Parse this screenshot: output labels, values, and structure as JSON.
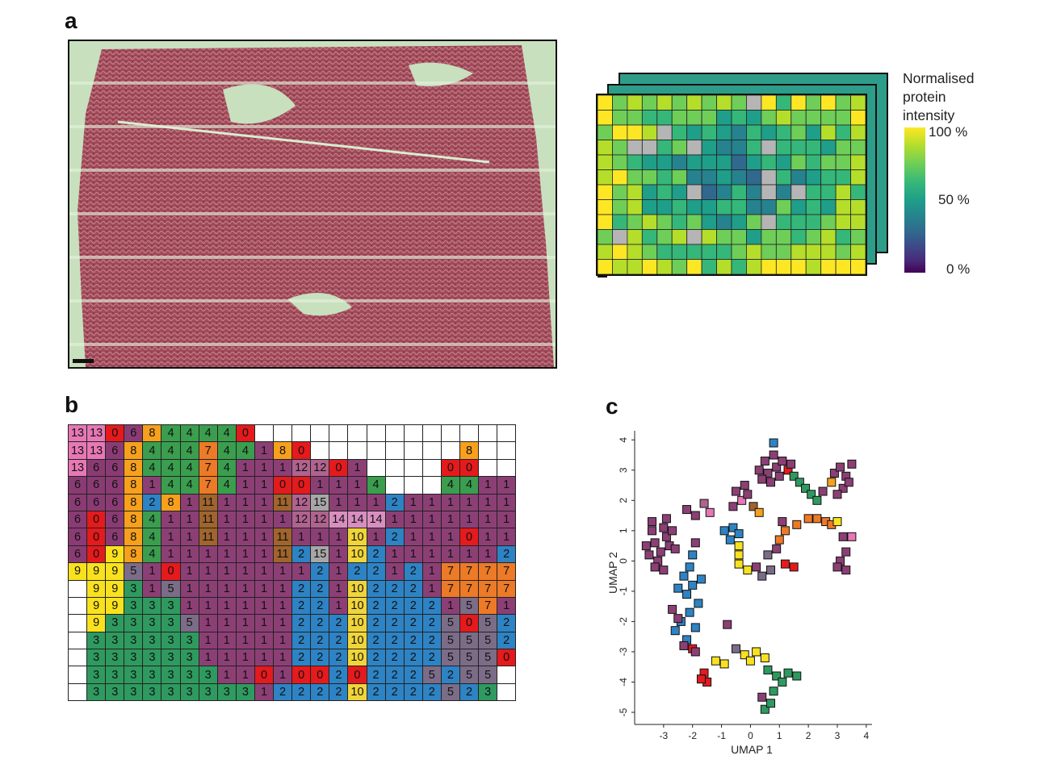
{
  "panels": {
    "a": "a",
    "b": "b",
    "c": "c"
  },
  "legend": {
    "title": "Normalised\nprotein\nintensity",
    "ticks": [
      "100 %",
      "50 %",
      "0 %"
    ]
  },
  "cluster_colors": {
    "0": "#e41a1c",
    "1": "#8c3f75",
    "2": "#2d83c4",
    "3": "#2e9a5f",
    "4": "#3a9e4e",
    "5": "#7b6c87",
    "6": "#8a3b74",
    "7": "#ec7a26",
    "8": "#f7a01c",
    "9": "#f9e21d",
    "10": "#f0d53a",
    "11": "#a0642c",
    "12": "#b0638f",
    "13": "#e778b5",
    "14": "#d98ec0",
    "15": "#a7a7a7",
    "": "#ffffff"
  },
  "cluster_grid": [
    [
      "13",
      "13",
      "0",
      "6",
      "8",
      "4",
      "4",
      "4",
      "4",
      "0",
      "",
      "",
      "",
      "",
      "",
      "",
      "",
      "",
      "",
      "",
      "",
      "",
      ""
    ],
    [
      "13",
      "13",
      "6",
      "8",
      "4",
      "4",
      "4",
      "7",
      "4",
      "4",
      "1",
      "8",
      "0",
      "",
      "",
      "",
      "",
      "",
      "",
      "",
      "",
      "8",
      ""
    ],
    [
      "13",
      "6",
      "6",
      "8",
      "4",
      "4",
      "4",
      "7",
      "4",
      "1",
      "1",
      "1",
      "12",
      "12",
      "0",
      "1",
      "",
      "",
      "",
      "",
      "0",
      "0",
      ""
    ],
    [
      "6",
      "6",
      "6",
      "8",
      "1",
      "4",
      "4",
      "7",
      "4",
      "1",
      "1",
      "0",
      "0",
      "1",
      "1",
      "1",
      "4",
      "",
      "",
      "",
      "4",
      "4",
      "1",
      "1"
    ],
    [
      "6",
      "6",
      "6",
      "8",
      "2",
      "8",
      "1",
      "11",
      "1",
      "1",
      "1",
      "11",
      "12",
      "15",
      "1",
      "1",
      "1",
      "2",
      "1",
      "1",
      "1",
      "1",
      "1",
      "1"
    ],
    [
      "6",
      "0",
      "6",
      "8",
      "4",
      "1",
      "1",
      "11",
      "1",
      "1",
      "1",
      "1",
      "12",
      "12",
      "14",
      "14",
      "14",
      "1",
      "1",
      "1",
      "1",
      "1",
      "1",
      "1"
    ],
    [
      "6",
      "0",
      "6",
      "8",
      "4",
      "1",
      "1",
      "11",
      "1",
      "1",
      "1",
      "11",
      "1",
      "1",
      "1",
      "10",
      "1",
      "2",
      "1",
      "1",
      "1",
      "0",
      "1",
      "1"
    ],
    [
      "6",
      "0",
      "9",
      "8",
      "4",
      "1",
      "1",
      "1",
      "1",
      "1",
      "1",
      "11",
      "2",
      "15",
      "1",
      "10",
      "2",
      "1",
      "1",
      "1",
      "1",
      "1",
      "1",
      "2"
    ],
    [
      "9",
      "9",
      "9",
      "5",
      "1",
      "0",
      "1",
      "1",
      "1",
      "1",
      "1",
      "1",
      "1",
      "2",
      "1",
      "2",
      "2",
      "1",
      "2",
      "1",
      "7",
      "7",
      "7",
      "7"
    ],
    [
      "",
      "9",
      "9",
      "3",
      "1",
      "5",
      "1",
      "1",
      "1",
      "1",
      "1",
      "1",
      "2",
      "2",
      "1",
      "10",
      "2",
      "2",
      "2",
      "1",
      "7",
      "7",
      "7",
      "7"
    ],
    [
      "",
      "9",
      "9",
      "3",
      "3",
      "3",
      "1",
      "1",
      "1",
      "1",
      "1",
      "1",
      "2",
      "2",
      "1",
      "10",
      "2",
      "2",
      "2",
      "2",
      "1",
      "5",
      "7",
      "1"
    ],
    [
      "",
      "9",
      "3",
      "3",
      "3",
      "3",
      "5",
      "1",
      "1",
      "1",
      "1",
      "1",
      "2",
      "2",
      "2",
      "10",
      "2",
      "2",
      "2",
      "2",
      "5",
      "0",
      "5",
      "2"
    ],
    [
      "",
      "3",
      "3",
      "3",
      "3",
      "3",
      "3",
      "1",
      "1",
      "1",
      "1",
      "1",
      "2",
      "2",
      "2",
      "10",
      "2",
      "2",
      "2",
      "2",
      "5",
      "5",
      "5",
      "2"
    ],
    [
      "",
      "3",
      "3",
      "3",
      "3",
      "3",
      "3",
      "1",
      "1",
      "1",
      "1",
      "1",
      "2",
      "2",
      "2",
      "10",
      "2",
      "2",
      "2",
      "2",
      "5",
      "5",
      "5",
      "0"
    ],
    [
      "",
      "3",
      "3",
      "3",
      "3",
      "3",
      "3",
      "3",
      "1",
      "1",
      "0",
      "1",
      "0",
      "0",
      "2",
      "0",
      "2",
      "2",
      "2",
      "5",
      "2",
      "5",
      "5",
      ""
    ],
    [
      "",
      "3",
      "3",
      "3",
      "3",
      "3",
      "3",
      "3",
      "3",
      "3",
      "1",
      "2",
      "2",
      "2",
      "2",
      "10",
      "2",
      "2",
      "2",
      "2",
      "5",
      "2",
      "3",
      ""
    ]
  ],
  "chart_data": {
    "type": "scatter",
    "title": "",
    "xlabel": "UMAP 1",
    "ylabel": "UMAP 2",
    "xlim": [
      -4,
      4.2
    ],
    "ylim": [
      -5.4,
      4.3
    ],
    "xticks": [
      "-3",
      "-2",
      "-1",
      "0",
      "1",
      "2",
      "3",
      "4"
    ],
    "yticks": [
      "4",
      "3",
      "2",
      "1",
      "0",
      "-1",
      "-2",
      "-3",
      "-4",
      "-5"
    ],
    "points": [
      {
        "x": -3.4,
        "y": 1.0,
        "c": "1"
      },
      {
        "x": -3.3,
        "y": 0.6,
        "c": "1"
      },
      {
        "x": -3.5,
        "y": 0.2,
        "c": "1"
      },
      {
        "x": -3.2,
        "y": 0.0,
        "c": "1"
      },
      {
        "x": -3.0,
        "y": 1.1,
        "c": "1"
      },
      {
        "x": -2.9,
        "y": 0.8,
        "c": "1"
      },
      {
        "x": -2.8,
        "y": 0.5,
        "c": "1"
      },
      {
        "x": -3.1,
        "y": 0.3,
        "c": "1"
      },
      {
        "x": -2.7,
        "y": 1.0,
        "c": "1"
      },
      {
        "x": -3.6,
        "y": 0.5,
        "c": "1"
      },
      {
        "x": -3.3,
        "y": -0.2,
        "c": "1"
      },
      {
        "x": -2.6,
        "y": 0.4,
        "c": "1"
      },
      {
        "x": -3.0,
        "y": -0.3,
        "c": "1"
      },
      {
        "x": -2.9,
        "y": 1.4,
        "c": "1"
      },
      {
        "x": -3.4,
        "y": 1.3,
        "c": "1"
      },
      {
        "x": -2.2,
        "y": 1.7,
        "c": "1"
      },
      {
        "x": -1.9,
        "y": 1.5,
        "c": "1"
      },
      {
        "x": -1.6,
        "y": 1.9,
        "c": "12"
      },
      {
        "x": -1.4,
        "y": 1.6,
        "c": "13"
      },
      {
        "x": -0.5,
        "y": 2.3,
        "c": "1"
      },
      {
        "x": -0.3,
        "y": 2.0,
        "c": "13"
      },
      {
        "x": -0.6,
        "y": 1.8,
        "c": "1"
      },
      {
        "x": -0.2,
        "y": 2.5,
        "c": "1"
      },
      {
        "x": 0.1,
        "y": 1.8,
        "c": "11"
      },
      {
        "x": 0.3,
        "y": 1.6,
        "c": "8"
      },
      {
        "x": -0.1,
        "y": 2.2,
        "c": "1"
      },
      {
        "x": 0.3,
        "y": 3.0,
        "c": "1"
      },
      {
        "x": 0.5,
        "y": 3.3,
        "c": "1"
      },
      {
        "x": 0.6,
        "y": 2.9,
        "c": "1"
      },
      {
        "x": 0.8,
        "y": 3.5,
        "c": "1"
      },
      {
        "x": 0.9,
        "y": 3.1,
        "c": "1"
      },
      {
        "x": 0.7,
        "y": 2.6,
        "c": "1"
      },
      {
        "x": 0.4,
        "y": 2.7,
        "c": "1"
      },
      {
        "x": 0.8,
        "y": 3.9,
        "c": "2"
      },
      {
        "x": 1.0,
        "y": 2.8,
        "c": "1"
      },
      {
        "x": 1.1,
        "y": 3.3,
        "c": "1"
      },
      {
        "x": 1.3,
        "y": 3.0,
        "c": "0"
      },
      {
        "x": 1.4,
        "y": 3.2,
        "c": "1"
      },
      {
        "x": 1.5,
        "y": 2.8,
        "c": "3"
      },
      {
        "x": 1.7,
        "y": 2.6,
        "c": "3"
      },
      {
        "x": 1.9,
        "y": 2.4,
        "c": "3"
      },
      {
        "x": 2.1,
        "y": 2.2,
        "c": "3"
      },
      {
        "x": 2.3,
        "y": 2.0,
        "c": "3"
      },
      {
        "x": 2.5,
        "y": 2.3,
        "c": "1"
      },
      {
        "x": 2.8,
        "y": 2.6,
        "c": "8"
      },
      {
        "x": 2.9,
        "y": 2.9,
        "c": "1"
      },
      {
        "x": 3.1,
        "y": 3.1,
        "c": "1"
      },
      {
        "x": 3.3,
        "y": 2.8,
        "c": "1"
      },
      {
        "x": 3.5,
        "y": 3.2,
        "c": "1"
      },
      {
        "x": 3.2,
        "y": 2.4,
        "c": "1"
      },
      {
        "x": 3.0,
        "y": 2.2,
        "c": "1"
      },
      {
        "x": 3.4,
        "y": 2.6,
        "c": "1"
      },
      {
        "x": 2.0,
        "y": 1.4,
        "c": "7"
      },
      {
        "x": 2.3,
        "y": 1.4,
        "c": "7"
      },
      {
        "x": 2.6,
        "y": 1.3,
        "c": "7"
      },
      {
        "x": 2.8,
        "y": 1.2,
        "c": "7"
      },
      {
        "x": 3.0,
        "y": 1.3,
        "c": "9"
      },
      {
        "x": 1.6,
        "y": 1.2,
        "c": "7"
      },
      {
        "x": 1.2,
        "y": 1.0,
        "c": "7"
      },
      {
        "x": 1.0,
        "y": 0.7,
        "c": "7"
      },
      {
        "x": 1.1,
        "y": 1.3,
        "c": "1"
      },
      {
        "x": 0.9,
        "y": 0.4,
        "c": "1"
      },
      {
        "x": 3.2,
        "y": 0.8,
        "c": "1"
      },
      {
        "x": 3.5,
        "y": 0.8,
        "c": "13"
      },
      {
        "x": 3.3,
        "y": 0.3,
        "c": "1"
      },
      {
        "x": 3.1,
        "y": 0.0,
        "c": "1"
      },
      {
        "x": 3.3,
        "y": -0.3,
        "c": "1"
      },
      {
        "x": 3.0,
        "y": -0.2,
        "c": "1"
      },
      {
        "x": -1.9,
        "y": 0.6,
        "c": "1"
      },
      {
        "x": -2.0,
        "y": 0.2,
        "c": "2"
      },
      {
        "x": -2.1,
        "y": -0.2,
        "c": "2"
      },
      {
        "x": -2.3,
        "y": -0.5,
        "c": "2"
      },
      {
        "x": -2.0,
        "y": -0.8,
        "c": "2"
      },
      {
        "x": -2.2,
        "y": -1.1,
        "c": "2"
      },
      {
        "x": -1.8,
        "y": -1.4,
        "c": "2"
      },
      {
        "x": -2.1,
        "y": -1.7,
        "c": "2"
      },
      {
        "x": -2.4,
        "y": -2.0,
        "c": "2"
      },
      {
        "x": -2.6,
        "y": -2.3,
        "c": "2"
      },
      {
        "x": -2.2,
        "y": -2.6,
        "c": "2"
      },
      {
        "x": -1.9,
        "y": -2.2,
        "c": "2"
      },
      {
        "x": -2.7,
        "y": -1.6,
        "c": "1"
      },
      {
        "x": -2.5,
        "y": -1.9,
        "c": "1"
      },
      {
        "x": -1.7,
        "y": -0.6,
        "c": "2"
      },
      {
        "x": -2.5,
        "y": -0.9,
        "c": "2"
      },
      {
        "x": -2.0,
        "y": -2.9,
        "c": "0"
      },
      {
        "x": -1.6,
        "y": -3.7,
        "c": "0"
      },
      {
        "x": -1.5,
        "y": -4.0,
        "c": "0"
      },
      {
        "x": -1.7,
        "y": -3.9,
        "c": "0"
      },
      {
        "x": -1.9,
        "y": -3.0,
        "c": "1"
      },
      {
        "x": -2.3,
        "y": -2.8,
        "c": "1"
      },
      {
        "x": -0.9,
        "y": 1.0,
        "c": "2"
      },
      {
        "x": -0.6,
        "y": 1.1,
        "c": "2"
      },
      {
        "x": -0.7,
        "y": 0.7,
        "c": "2"
      },
      {
        "x": -0.4,
        "y": 0.9,
        "c": "2"
      },
      {
        "x": -0.4,
        "y": 0.5,
        "c": "9"
      },
      {
        "x": -0.4,
        "y": 0.2,
        "c": "9"
      },
      {
        "x": -0.4,
        "y": -0.1,
        "c": "9"
      },
      {
        "x": -0.1,
        "y": -0.3,
        "c": "9"
      },
      {
        "x": 0.2,
        "y": -0.2,
        "c": "1"
      },
      {
        "x": 0.4,
        "y": -0.5,
        "c": "5"
      },
      {
        "x": 0.7,
        "y": -0.3,
        "c": "5"
      },
      {
        "x": 0.6,
        "y": 0.2,
        "c": "5"
      },
      {
        "x": 1.2,
        "y": -0.1,
        "c": "0"
      },
      {
        "x": 1.5,
        "y": -0.2,
        "c": "0"
      },
      {
        "x": -0.8,
        "y": -2.1,
        "c": "1"
      },
      {
        "x": -0.5,
        "y": -2.9,
        "c": "5"
      },
      {
        "x": -0.2,
        "y": -3.1,
        "c": "9"
      },
      {
        "x": 0.0,
        "y": -3.3,
        "c": "9"
      },
      {
        "x": 0.2,
        "y": -3.0,
        "c": "9"
      },
      {
        "x": 0.5,
        "y": -3.2,
        "c": "9"
      },
      {
        "x": -0.9,
        "y": -3.4,
        "c": "9"
      },
      {
        "x": -1.2,
        "y": -3.3,
        "c": "9"
      },
      {
        "x": 0.6,
        "y": -3.6,
        "c": "3"
      },
      {
        "x": 0.9,
        "y": -3.8,
        "c": "3"
      },
      {
        "x": 1.1,
        "y": -4.0,
        "c": "3"
      },
      {
        "x": 1.3,
        "y": -3.7,
        "c": "3"
      },
      {
        "x": 0.8,
        "y": -4.3,
        "c": "3"
      },
      {
        "x": 1.6,
        "y": -3.8,
        "c": "3"
      },
      {
        "x": 0.5,
        "y": -4.9,
        "c": "3"
      },
      {
        "x": 0.7,
        "y": -4.7,
        "c": "3"
      },
      {
        "x": 0.4,
        "y": -4.5,
        "c": "1"
      }
    ]
  }
}
